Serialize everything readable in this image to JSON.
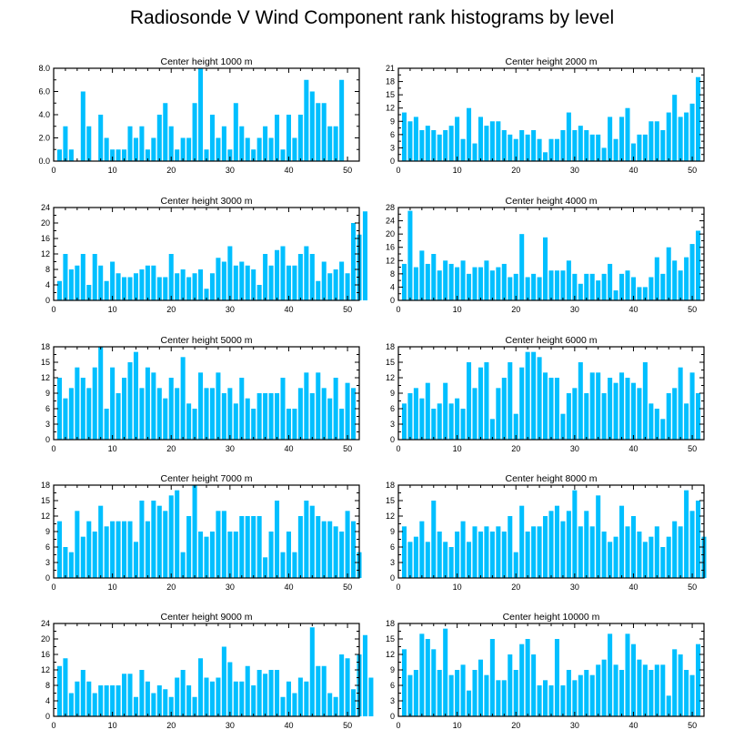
{
  "title": "Radiosonde V Wind Component rank histograms by level",
  "colors": {
    "bar": "#00bfff",
    "axis": "#000000"
  },
  "chart_data": [
    {
      "type": "bar",
      "title": "Center height 1000 m",
      "xlim": [
        0,
        52
      ],
      "ylim": [
        0,
        8
      ],
      "xticks": [
        "0",
        "10",
        "20",
        "30",
        "40",
        "50"
      ],
      "yticks": [
        "0.0",
        "2.0",
        "4.0",
        "6.0",
        "8.0"
      ],
      "values": [
        1,
        3,
        1,
        0,
        6,
        3,
        0,
        4,
        2,
        1,
        1,
        1,
        3,
        2,
        3,
        1,
        2,
        4,
        5,
        3,
        1,
        2,
        2,
        5,
        8,
        1,
        4,
        2,
        3,
        1,
        5,
        3,
        2,
        1,
        2,
        3,
        2,
        4,
        1,
        4,
        2,
        4,
        7,
        6,
        5,
        5,
        3,
        3,
        7
      ]
    },
    {
      "type": "bar",
      "title": "Center height 2000 m",
      "xlim": [
        0,
        52
      ],
      "ylim": [
        0,
        21
      ],
      "xticks": [
        "0",
        "10",
        "20",
        "30",
        "40",
        "50"
      ],
      "yticks": [
        "0",
        "3",
        "6",
        "9",
        "12",
        "15",
        "18",
        "21"
      ],
      "values": [
        11,
        9,
        10,
        7,
        8,
        7,
        6,
        7,
        8,
        10,
        5,
        12,
        4,
        10,
        8,
        9,
        9,
        7,
        6,
        5,
        7,
        6,
        7,
        5,
        2,
        5,
        5,
        7,
        11,
        7,
        8,
        7,
        6,
        6,
        3,
        10,
        5,
        10,
        12,
        4,
        6,
        6,
        9,
        9,
        7,
        11,
        15,
        10,
        11,
        13,
        19
      ]
    },
    {
      "type": "bar",
      "title": "Center height 3000 m",
      "xlim": [
        0,
        52
      ],
      "ylim": [
        0,
        24
      ],
      "xticks": [
        "0",
        "10",
        "20",
        "30",
        "40",
        "50"
      ],
      "yticks": [
        "0",
        "4",
        "8",
        "12",
        "16",
        "20",
        "24"
      ],
      "values": [
        5,
        12,
        8,
        9,
        12,
        4,
        12,
        9,
        5,
        10,
        7,
        6,
        6,
        7,
        8,
        9,
        9,
        6,
        6,
        12,
        7,
        8,
        6,
        7,
        8,
        3,
        7,
        11,
        10,
        14,
        9,
        10,
        9,
        8,
        4,
        12,
        9,
        13,
        14,
        9,
        9,
        12,
        14,
        12,
        5,
        10,
        7,
        8,
        10,
        7,
        20,
        17,
        23
      ]
    },
    {
      "type": "bar",
      "title": "Center height 4000 m",
      "xlim": [
        0,
        52
      ],
      "ylim": [
        0,
        28
      ],
      "xticks": [
        "0",
        "10",
        "20",
        "30",
        "40",
        "50"
      ],
      "yticks": [
        "0",
        "4",
        "8",
        "12",
        "16",
        "20",
        "24",
        "28"
      ],
      "values": [
        11,
        27,
        10,
        15,
        11,
        14,
        9,
        12,
        11,
        10,
        12,
        8,
        10,
        10,
        12,
        9,
        10,
        11,
        7,
        8,
        20,
        7,
        8,
        7,
        19,
        9,
        9,
        9,
        12,
        8,
        5,
        8,
        8,
        6,
        8,
        11,
        3,
        8,
        9,
        7,
        4,
        4,
        7,
        13,
        8,
        16,
        12,
        9,
        13,
        17,
        21
      ]
    },
    {
      "type": "bar",
      "title": "Center height 5000 m",
      "xlim": [
        0,
        52
      ],
      "ylim": [
        0,
        18
      ],
      "xticks": [
        "0",
        "10",
        "20",
        "30",
        "40",
        "50"
      ],
      "yticks": [
        "0",
        "3",
        "6",
        "9",
        "12",
        "15",
        "18"
      ],
      "values": [
        12,
        8,
        10,
        14,
        12,
        10,
        14,
        18,
        6,
        14,
        9,
        12,
        15,
        17,
        10,
        14,
        13,
        10,
        8,
        12,
        10,
        16,
        7,
        6,
        13,
        10,
        10,
        13,
        9,
        10,
        7,
        12,
        8,
        6,
        9,
        9,
        9,
        9,
        12,
        6,
        6,
        10,
        13,
        9,
        13,
        10,
        8,
        12,
        6,
        11,
        10
      ]
    },
    {
      "type": "bar",
      "title": "Center height 6000 m",
      "xlim": [
        0,
        52
      ],
      "ylim": [
        0,
        18
      ],
      "xticks": [
        "0",
        "10",
        "20",
        "30",
        "40",
        "50"
      ],
      "yticks": [
        "0",
        "3",
        "6",
        "9",
        "12",
        "15",
        "18"
      ],
      "values": [
        7,
        9,
        10,
        8,
        11,
        6,
        7,
        11,
        7,
        8,
        6,
        15,
        10,
        14,
        15,
        4,
        10,
        12,
        15,
        5,
        14,
        17,
        17,
        16,
        13,
        12,
        12,
        5,
        9,
        10,
        15,
        9,
        13,
        13,
        9,
        12,
        11,
        13,
        12,
        11,
        10,
        15,
        7,
        6,
        4,
        9,
        10,
        14,
        7,
        13,
        9
      ]
    },
    {
      "type": "bar",
      "title": "Center height 7000 m",
      "xlim": [
        0,
        52
      ],
      "ylim": [
        0,
        18
      ],
      "xticks": [
        "0",
        "10",
        "20",
        "30",
        "40",
        "50"
      ],
      "yticks": [
        "0",
        "3",
        "6",
        "9",
        "12",
        "15",
        "18"
      ],
      "values": [
        11,
        6,
        5,
        13,
        8,
        11,
        9,
        14,
        10,
        11,
        11,
        11,
        11,
        7,
        15,
        11,
        15,
        14,
        13,
        16,
        17,
        5,
        12,
        18,
        9,
        8,
        9,
        13,
        13,
        9,
        9,
        12,
        12,
        12,
        12,
        4,
        9,
        15,
        5,
        9,
        5,
        12,
        15,
        14,
        12,
        11,
        11,
        10,
        9,
        13,
        11,
        5
      ]
    },
    {
      "type": "bar",
      "title": "Center height 8000 m",
      "xlim": [
        0,
        52
      ],
      "ylim": [
        0,
        18
      ],
      "xticks": [
        "0",
        "10",
        "20",
        "30",
        "40",
        "50"
      ],
      "yticks": [
        "0",
        "3",
        "6",
        "9",
        "12",
        "15",
        "18"
      ],
      "values": [
        10,
        7,
        8,
        11,
        7,
        15,
        9,
        7,
        6,
        9,
        11,
        7,
        10,
        9,
        10,
        9,
        10,
        9,
        12,
        5,
        14,
        9,
        10,
        10,
        12,
        13,
        14,
        11,
        13,
        17,
        10,
        13,
        10,
        16,
        9,
        7,
        8,
        14,
        10,
        12,
        9,
        7,
        8,
        10,
        6,
        8,
        11,
        10,
        17,
        13,
        15,
        8
      ]
    },
    {
      "type": "bar",
      "title": "Center height 9000 m",
      "xlim": [
        0,
        52
      ],
      "ylim": [
        0,
        24
      ],
      "xticks": [
        "0",
        "10",
        "20",
        "30",
        "40",
        "50"
      ],
      "yticks": [
        "0",
        "4",
        "8",
        "12",
        "16",
        "20",
        "24"
      ],
      "values": [
        13,
        15,
        6,
        9,
        12,
        9,
        6,
        8,
        8,
        8,
        8,
        11,
        11,
        5,
        12,
        9,
        6,
        8,
        7,
        5,
        10,
        12,
        8,
        5,
        15,
        10,
        9,
        10,
        18,
        14,
        9,
        9,
        13,
        8,
        12,
        11,
        12,
        12,
        5,
        9,
        6,
        10,
        9,
        23,
        13,
        13,
        6,
        5,
        16,
        15,
        7,
        16,
        21,
        10
      ]
    },
    {
      "type": "bar",
      "title": "Center height 10000 m",
      "xlim": [
        0,
        52
      ],
      "ylim": [
        0,
        18
      ],
      "xticks": [
        "0",
        "10",
        "20",
        "30",
        "40",
        "50"
      ],
      "yticks": [
        "0",
        "3",
        "6",
        "9",
        "12",
        "15",
        "18"
      ],
      "values": [
        13,
        8,
        9,
        16,
        15,
        13,
        9,
        17,
        8,
        9,
        10,
        5,
        9,
        11,
        8,
        15,
        7,
        7,
        12,
        9,
        14,
        15,
        12,
        6,
        7,
        6,
        15,
        6,
        9,
        7,
        8,
        9,
        8,
        10,
        11,
        16,
        10,
        9,
        16,
        14,
        11,
        10,
        9,
        10,
        10,
        4,
        13,
        12,
        9,
        8,
        14
      ]
    }
  ]
}
